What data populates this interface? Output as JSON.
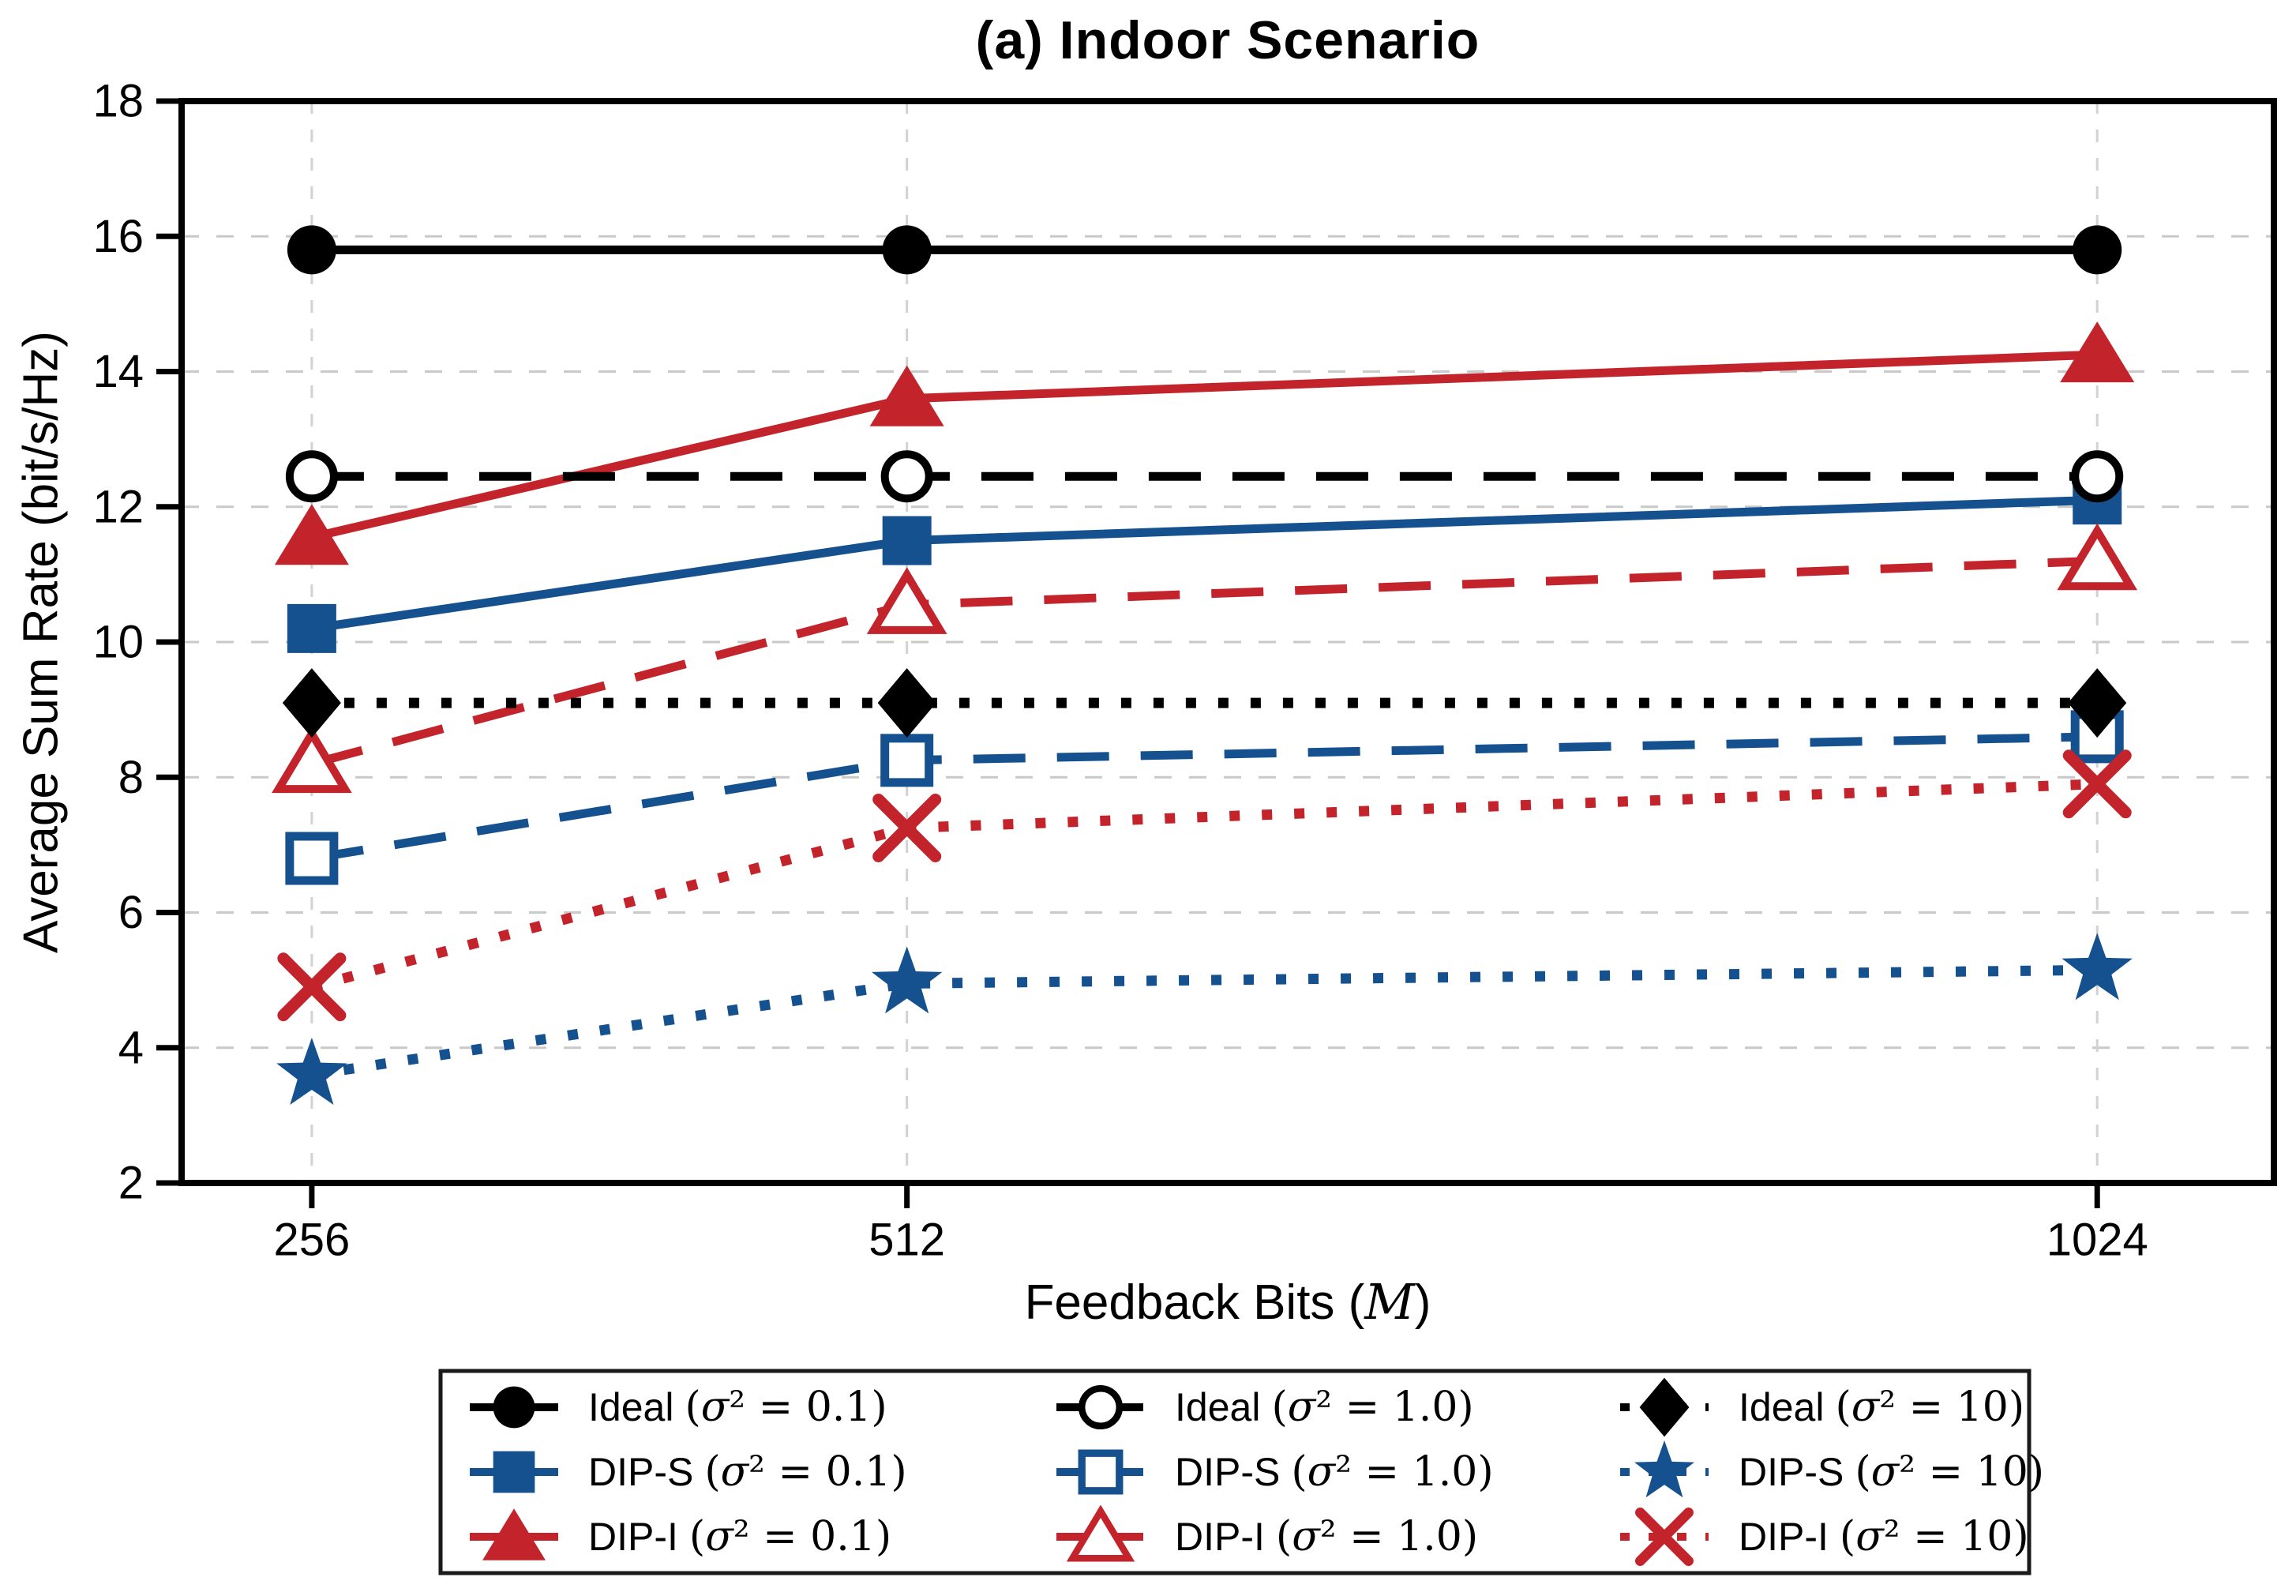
{
  "page": {
    "title": "(a) Indoor Scenario"
  },
  "chart_data": {
    "type": "line",
    "title": "(a) Indoor Scenario",
    "ylabel": "Average Sum Rate (bit/s/Hz)",
    "xlabel_prefix": "Feedback Bits (",
    "xlabel_var": "M",
    "xlabel_suffix": ")",
    "x": [
      256,
      512,
      1024
    ],
    "x_tick_labels": [
      "256",
      "512",
      "1024"
    ],
    "y_ticks": [
      2,
      4,
      6,
      8,
      10,
      12,
      14,
      16,
      18
    ],
    "xlim": [
      200,
      1100
    ],
    "ylim": [
      2,
      18
    ],
    "grid": true,
    "legend_position": "below",
    "colors": {
      "black": "#000000",
      "blue": "#16518f",
      "red": "#c3242b",
      "grid": "#c9c9c9",
      "grid_v": "#d2d2d2"
    },
    "series": [
      {
        "label_name": "Ideal",
        "label_math": "(σ² = 0.1)",
        "color": "black",
        "line": "solid",
        "marker": "circle-filled",
        "values": [
          15.8,
          15.8,
          15.8
        ]
      },
      {
        "label_name": "DIP-S",
        "label_math": "(σ² = 0.1)",
        "color": "blue",
        "line": "solid",
        "marker": "square-filled",
        "values": [
          10.2,
          11.5,
          12.1
        ]
      },
      {
        "label_name": "DIP-I",
        "label_math": "(σ² = 0.1)",
        "color": "red",
        "line": "solid",
        "marker": "triangle-filled",
        "values": [
          11.55,
          13.6,
          14.25
        ]
      },
      {
        "label_name": "Ideal",
        "label_math": "(σ² = 1.0)",
        "color": "black",
        "line": "dashed",
        "marker": "circle-open",
        "values": [
          12.45,
          12.45,
          12.45
        ]
      },
      {
        "label_name": "DIP-S",
        "label_math": "(σ² = 1.0)",
        "color": "blue",
        "line": "dashed",
        "marker": "square-open",
        "values": [
          6.8,
          8.25,
          8.6
        ]
      },
      {
        "label_name": "DIP-I",
        "label_math": "(σ² = 1.0)",
        "color": "red",
        "line": "dashed",
        "marker": "triangle-open",
        "values": [
          8.2,
          10.55,
          11.2
        ]
      },
      {
        "label_name": "Ideal",
        "label_math": "(σ² = 10)",
        "color": "black",
        "line": "dotted",
        "marker": "diamond-filled",
        "values": [
          9.1,
          9.1,
          9.1
        ]
      },
      {
        "label_name": "DIP-S",
        "label_math": "(σ² = 10)",
        "color": "blue",
        "line": "dotted",
        "marker": "star-filled",
        "values": [
          3.6,
          4.95,
          5.15
        ]
      },
      {
        "label_name": "DIP-I",
        "label_math": "(σ² = 10)",
        "color": "red",
        "line": "dotted",
        "marker": "x",
        "values": [
          4.9,
          7.25,
          7.9
        ]
      }
    ],
    "legend_columns": [
      [
        0,
        1,
        2
      ],
      [
        3,
        4,
        5
      ],
      [
        6,
        7,
        8
      ]
    ]
  }
}
